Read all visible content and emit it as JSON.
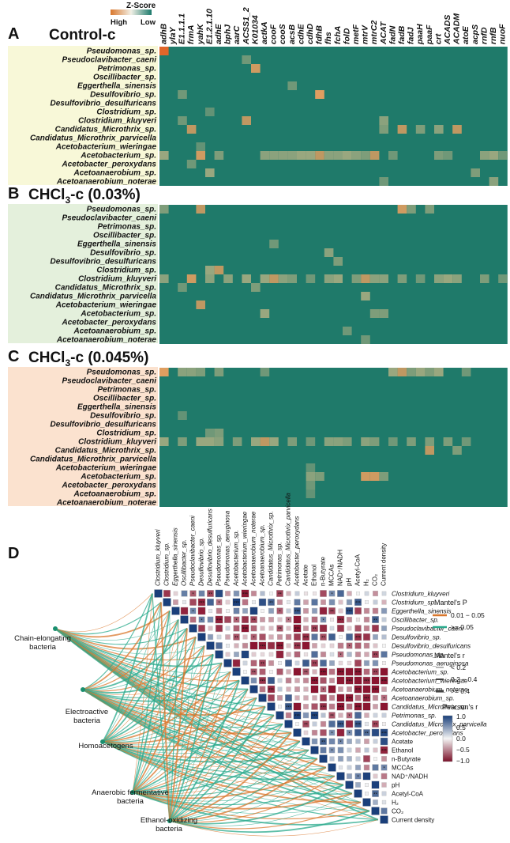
{
  "chart_data": [
    {
      "type": "heatmap",
      "panel_letter": "A",
      "title": "Control-c",
      "color_scale": {
        "title": "Z-Score",
        "high_label": "High",
        "low_label": "Low"
      },
      "genes": [
        "adhB",
        "ylaY",
        "E1.1.1.1",
        "frmA",
        "yahK",
        "E1.2.1.10",
        "adhE",
        "bphJ",
        "aarC",
        "ACSS1_2",
        "K01034",
        "actkA",
        "cooF",
        "cooS",
        "acsB",
        "cdhE",
        "cdhD",
        "fdhB",
        "fhs",
        "fchA",
        "folD",
        "metF",
        "mtrV",
        "mtrC2",
        "ACAT",
        "fadN",
        "fadB",
        "fadJ",
        "paaH",
        "paaF",
        "crt",
        "ACADS",
        "ACADM",
        "atoE",
        "acpS",
        "rnfD",
        "rnfB",
        "nuoF"
      ],
      "organisms": [
        "Pseudomonas_sp.",
        "Pseudoclavibacter_caeni",
        "Petrimonas_sp.",
        "Oscillibacter_sp.",
        "Eggerthella_sinensis",
        "Desulfovibrio_sp.",
        "Desulfovibrio_desulfuricans",
        "Clostridium_sp.",
        "Clostridium_kluyveri",
        "Candidatus_Microthrix_sp.",
        "Candidatus_Microthrix_parvicella",
        "Acetobacterium_wieringae",
        "Acetobacterium_sp.",
        "Acetobacter_peroxydans",
        "Acetoanaerobium_sp.",
        "Acetoanaerobium_noterae"
      ],
      "highlights": [
        {
          "row": 0,
          "col": 0,
          "z": 1.0
        },
        {
          "row": 1,
          "col": 9,
          "z": 0.3
        },
        {
          "row": 2,
          "col": 10,
          "z": 0.55
        },
        {
          "row": 4,
          "col": 14,
          "z": 0.3
        },
        {
          "row": 5,
          "col": 2,
          "z": 0.3
        },
        {
          "row": 5,
          "col": 17,
          "z": 0.6
        },
        {
          "row": 7,
          "col": 5,
          "z": 0.25
        },
        {
          "row": 8,
          "col": 2,
          "z": 0.3
        },
        {
          "row": 8,
          "col": 9,
          "z": 0.5
        },
        {
          "row": 8,
          "col": 24,
          "z": 0.4
        },
        {
          "row": 9,
          "col": 3,
          "z": 0.5
        },
        {
          "row": 9,
          "col": 24,
          "z": 0.35
        },
        {
          "row": 9,
          "col": 26,
          "z": 0.5
        },
        {
          "row": 9,
          "col": 28,
          "z": 0.35
        },
        {
          "row": 9,
          "col": 30,
          "z": 0.4
        },
        {
          "row": 9,
          "col": 32,
          "z": 0.5
        },
        {
          "row": 11,
          "col": 4,
          "z": 0.25
        },
        {
          "row": 12,
          "col": 0,
          "z": 0.45
        },
        {
          "row": 12,
          "col": 4,
          "z": 0.55
        },
        {
          "row": 12,
          "col": 6,
          "z": 0.35
        },
        {
          "row": 12,
          "col": 11,
          "z": 0.4
        },
        {
          "row": 12,
          "col": 12,
          "z": 0.4
        },
        {
          "row": 12,
          "col": 13,
          "z": 0.4
        },
        {
          "row": 12,
          "col": 14,
          "z": 0.4
        },
        {
          "row": 12,
          "col": 15,
          "z": 0.45
        },
        {
          "row": 12,
          "col": 16,
          "z": 0.45
        },
        {
          "row": 12,
          "col": 17,
          "z": 0.5
        },
        {
          "row": 12,
          "col": 18,
          "z": 0.4
        },
        {
          "row": 12,
          "col": 19,
          "z": 0.4
        },
        {
          "row": 12,
          "col": 20,
          "z": 0.45
        },
        {
          "row": 12,
          "col": 21,
          "z": 0.4
        },
        {
          "row": 12,
          "col": 22,
          "z": 0.35
        },
        {
          "row": 12,
          "col": 23,
          "z": 0.5
        },
        {
          "row": 12,
          "col": 25,
          "z": 0.3
        },
        {
          "row": 12,
          "col": 30,
          "z": 0.35
        },
        {
          "row": 12,
          "col": 31,
          "z": 0.3
        },
        {
          "row": 12,
          "col": 35,
          "z": 0.4
        },
        {
          "row": 12,
          "col": 36,
          "z": 0.45
        },
        {
          "row": 12,
          "col": 37,
          "z": 0.3
        },
        {
          "row": 13,
          "col": 3,
          "z": 0.3
        },
        {
          "row": 14,
          "col": 5,
          "z": 0.45
        },
        {
          "row": 14,
          "col": 34,
          "z": 0.35
        },
        {
          "row": 15,
          "col": 24,
          "z": 0.3
        },
        {
          "row": 15,
          "col": 36,
          "z": 0.4
        }
      ]
    },
    {
      "type": "heatmap",
      "panel_letter": "B",
      "title": "CHCl",
      "title_sub": "3",
      "title_suffix": "-c (0.03%)",
      "highlights": [
        {
          "row": 0,
          "col": 0,
          "z": 0.35
        },
        {
          "row": 0,
          "col": 4,
          "z": 0.5
        },
        {
          "row": 0,
          "col": 26,
          "z": 0.55
        },
        {
          "row": 0,
          "col": 27,
          "z": 0.35
        },
        {
          "row": 0,
          "col": 29,
          "z": 0.35
        },
        {
          "row": 4,
          "col": 12,
          "z": 0.3
        },
        {
          "row": 5,
          "col": 18,
          "z": 0.4
        },
        {
          "row": 6,
          "col": 19,
          "z": 0.35
        },
        {
          "row": 7,
          "col": 5,
          "z": 0.45
        },
        {
          "row": 7,
          "col": 6,
          "z": 0.5
        },
        {
          "row": 8,
          "col": 0,
          "z": 0.4
        },
        {
          "row": 8,
          "col": 3,
          "z": 0.55
        },
        {
          "row": 8,
          "col": 5,
          "z": 0.4
        },
        {
          "row": 8,
          "col": 7,
          "z": 0.4
        },
        {
          "row": 8,
          "col": 9,
          "z": 0.45
        },
        {
          "row": 8,
          "col": 11,
          "z": 0.45
        },
        {
          "row": 8,
          "col": 12,
          "z": 0.5
        },
        {
          "row": 8,
          "col": 13,
          "z": 0.4
        },
        {
          "row": 8,
          "col": 14,
          "z": 0.35
        },
        {
          "row": 8,
          "col": 16,
          "z": 0.3
        },
        {
          "row": 8,
          "col": 18,
          "z": 0.4
        },
        {
          "row": 8,
          "col": 19,
          "z": 0.45
        },
        {
          "row": 8,
          "col": 21,
          "z": 0.35
        },
        {
          "row": 8,
          "col": 22,
          "z": 0.5
        },
        {
          "row": 8,
          "col": 23,
          "z": 0.4
        },
        {
          "row": 8,
          "col": 24,
          "z": 0.4
        },
        {
          "row": 8,
          "col": 26,
          "z": 0.35
        },
        {
          "row": 8,
          "col": 28,
          "z": 0.3
        },
        {
          "row": 8,
          "col": 30,
          "z": 0.4
        },
        {
          "row": 8,
          "col": 31,
          "z": 0.45
        },
        {
          "row": 8,
          "col": 32,
          "z": 0.4
        },
        {
          "row": 8,
          "col": 35,
          "z": 0.35
        },
        {
          "row": 8,
          "col": 37,
          "z": 0.3
        },
        {
          "row": 9,
          "col": 2,
          "z": 0.3
        },
        {
          "row": 9,
          "col": 10,
          "z": 0.35
        },
        {
          "row": 10,
          "col": 22,
          "z": 0.45
        },
        {
          "row": 11,
          "col": 4,
          "z": 0.5
        },
        {
          "row": 12,
          "col": 11,
          "z": 0.45
        },
        {
          "row": 12,
          "col": 23,
          "z": 0.35
        },
        {
          "row": 12,
          "col": 24,
          "z": 0.35
        },
        {
          "row": 14,
          "col": 20,
          "z": 0.3
        },
        {
          "row": 15,
          "col": 22,
          "z": 0.3
        }
      ]
    },
    {
      "type": "heatmap",
      "panel_letter": "C",
      "title": "CHCl",
      "title_sub": "3",
      "title_suffix": "-c (0.045%)",
      "highlights": [
        {
          "row": 0,
          "col": 0,
          "z": 0.6
        },
        {
          "row": 0,
          "col": 2,
          "z": 0.4
        },
        {
          "row": 0,
          "col": 3,
          "z": 0.4
        },
        {
          "row": 0,
          "col": 4,
          "z": 0.35
        },
        {
          "row": 0,
          "col": 6,
          "z": 0.35
        },
        {
          "row": 0,
          "col": 11,
          "z": 0.3
        },
        {
          "row": 0,
          "col": 25,
          "z": 0.45
        },
        {
          "row": 0,
          "col": 26,
          "z": 0.5
        },
        {
          "row": 0,
          "col": 27,
          "z": 0.35
        },
        {
          "row": 0,
          "col": 28,
          "z": 0.45
        },
        {
          "row": 0,
          "col": 29,
          "z": 0.35
        },
        {
          "row": 0,
          "col": 30,
          "z": 0.45
        },
        {
          "row": 0,
          "col": 33,
          "z": 0.3
        },
        {
          "row": 5,
          "col": 2,
          "z": 0.25
        },
        {
          "row": 7,
          "col": 5,
          "z": 0.3
        },
        {
          "row": 7,
          "col": 6,
          "z": 0.35
        },
        {
          "row": 8,
          "col": 0,
          "z": 0.45
        },
        {
          "row": 8,
          "col": 2,
          "z": 0.35
        },
        {
          "row": 8,
          "col": 4,
          "z": 0.45
        },
        {
          "row": 8,
          "col": 5,
          "z": 0.45
        },
        {
          "row": 8,
          "col": 6,
          "z": 0.4
        },
        {
          "row": 8,
          "col": 8,
          "z": 0.35
        },
        {
          "row": 8,
          "col": 10,
          "z": 0.45
        },
        {
          "row": 8,
          "col": 11,
          "z": 0.5
        },
        {
          "row": 8,
          "col": 12,
          "z": 0.45
        },
        {
          "row": 8,
          "col": 14,
          "z": 0.35
        },
        {
          "row": 8,
          "col": 16,
          "z": 0.3
        },
        {
          "row": 8,
          "col": 18,
          "z": 0.4
        },
        {
          "row": 8,
          "col": 19,
          "z": 0.4
        },
        {
          "row": 8,
          "col": 20,
          "z": 0.35
        },
        {
          "row": 8,
          "col": 22,
          "z": 0.4
        },
        {
          "row": 8,
          "col": 23,
          "z": 0.35
        },
        {
          "row": 8,
          "col": 25,
          "z": 0.3
        },
        {
          "row": 8,
          "col": 27,
          "z": 0.35
        },
        {
          "row": 8,
          "col": 29,
          "z": 0.35
        },
        {
          "row": 8,
          "col": 31,
          "z": 0.35
        },
        {
          "row": 8,
          "col": 33,
          "z": 0.3
        },
        {
          "row": 9,
          "col": 29,
          "z": 0.5
        },
        {
          "row": 9,
          "col": 32,
          "z": 0.35
        },
        {
          "row": 11,
          "col": 16,
          "z": 0.25
        },
        {
          "row": 12,
          "col": 16,
          "z": 0.4
        },
        {
          "row": 12,
          "col": 17,
          "z": 0.35
        },
        {
          "row": 12,
          "col": 22,
          "z": 0.55
        },
        {
          "row": 12,
          "col": 23,
          "z": 0.55
        },
        {
          "row": 12,
          "col": 24,
          "z": 0.35
        },
        {
          "row": 13,
          "col": 16,
          "z": 0.3
        },
        {
          "row": 14,
          "col": 16,
          "z": 0.25
        }
      ]
    },
    {
      "type": "heatmap",
      "panel_letter": "D",
      "subtype": "correlation-triangle-with-mantel",
      "variables": [
        "Clostridium_kluyveri",
        "Clostridium_sp.",
        "Eggerthella_sinensis",
        "Oscillibacter_sp.",
        "Pseudoclavibacter_caeni",
        "Desulfovibrio_sp.",
        "Desulfovibrio_desulfuricans",
        "Pseudomonas_sp.",
        "Pseudomonas_aeruginosa",
        "Acetobacterium_sp.",
        "Acetobacterium_wieringae",
        "Acetoanaerobium_noterae",
        "Acetoanaerobium_sp.",
        "Candidatus_Microthrix_sp.",
        "Petrimonas_sp.",
        "Candidatus_Microthrix_parvicella",
        "Acetobacter_peroxydans",
        "Acetate",
        "Ethanol",
        "n-Butyrate",
        "MCCAs",
        "NAD⁺/NADH",
        "pH",
        "Acetyl-CoA",
        "H₂",
        "CO₂",
        "Current density"
      ],
      "groups": [
        "Chain-elongating bacteria",
        "Electroactive bacteria",
        "Homoacetogens",
        "Anaerobic fermentative bacteria",
        "Ethanol-oxidizing bacteria"
      ],
      "mantel_p_legend": {
        "title": "Mantel's P",
        "items": [
          {
            "label": "0.01 − 0.05",
            "color": "#d9772c"
          },
          {
            "label": ">= 0.05",
            "color": "#2aa98c"
          }
        ]
      },
      "mantel_r_legend": {
        "title": "Mantel's r",
        "items": [
          "< 0.2",
          "0.2 − 0.4",
          ">= 0.4"
        ]
      },
      "pearson_legend": {
        "title": "Pearson's r",
        "ticks": [
          "1.0",
          "0.5",
          "0.0",
          "−0.5",
          "−1.0"
        ],
        "range": [
          -1.0,
          1.0
        ]
      },
      "significance_marks": [
        "*",
        "**",
        "***"
      ]
    }
  ],
  "axis_labels": {
    "current_density": "Current density",
    "h2": "H",
    "co2": "CO"
  }
}
